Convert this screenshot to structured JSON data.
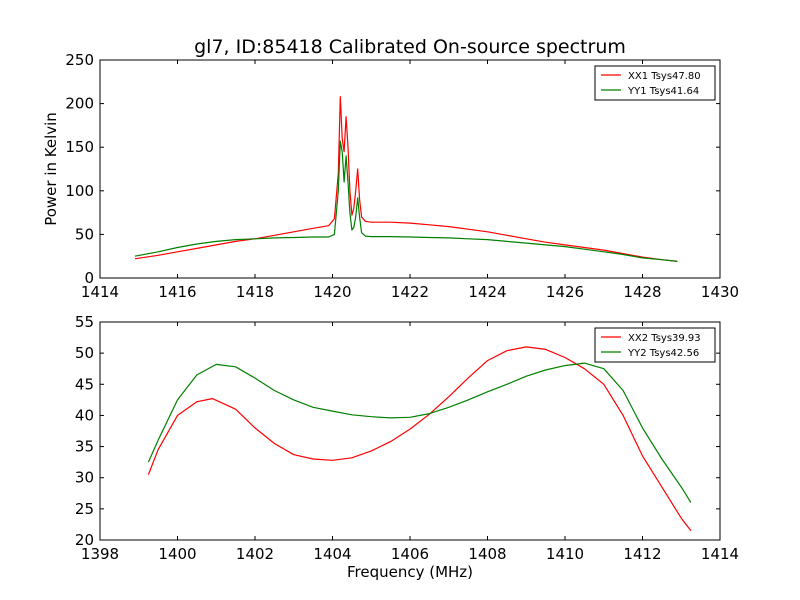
{
  "figure_title": "gl7, ID:85418 Calibrated On-source spectrum",
  "chart_data": [
    {
      "type": "line",
      "title": "",
      "xlabel": "",
      "ylabel": "Power in Kelvin",
      "xlim": [
        1414,
        1430
      ],
      "ylim": [
        0,
        250
      ],
      "xticks": [
        "1414",
        "1416",
        "1418",
        "1420",
        "1422",
        "1424",
        "1426",
        "1428",
        "1430"
      ],
      "yticks": [
        "0",
        "50",
        "100",
        "150",
        "200",
        "250"
      ],
      "legend_position": "top-right",
      "grid": false,
      "series": [
        {
          "name": "XX1 Tsys47.80",
          "color": "#ff0000",
          "x": [
            1414.9,
            1415.5,
            1416.0,
            1416.5,
            1417.0,
            1417.5,
            1418.0,
            1418.5,
            1419.0,
            1419.5,
            1419.9,
            1420.05,
            1420.15,
            1420.2,
            1420.25,
            1420.3,
            1420.35,
            1420.4,
            1420.45,
            1420.5,
            1420.55,
            1420.6,
            1420.65,
            1420.7,
            1420.75,
            1420.85,
            1421.0,
            1421.5,
            1422.0,
            1422.5,
            1423.0,
            1423.5,
            1424.0,
            1424.5,
            1425.0,
            1425.5,
            1426.0,
            1426.5,
            1427.0,
            1427.5,
            1428.0,
            1428.5,
            1428.9
          ],
          "y": [
            22,
            26,
            30,
            34,
            38,
            42,
            45,
            49,
            53,
            57,
            60,
            68,
            120,
            208,
            160,
            145,
            185,
            150,
            100,
            72,
            80,
            100,
            125,
            90,
            70,
            65,
            64,
            64,
            63,
            61,
            59,
            56,
            53,
            49,
            45,
            41,
            38,
            35,
            32,
            28,
            24,
            21,
            19
          ]
        },
        {
          "name": "YY1 Tsys41.64",
          "color": "#008000",
          "x": [
            1414.9,
            1415.5,
            1416.0,
            1416.5,
            1417.0,
            1417.5,
            1418.0,
            1418.5,
            1419.0,
            1419.5,
            1419.9,
            1420.05,
            1420.15,
            1420.2,
            1420.25,
            1420.3,
            1420.35,
            1420.4,
            1420.45,
            1420.5,
            1420.55,
            1420.6,
            1420.65,
            1420.7,
            1420.75,
            1420.85,
            1421.0,
            1421.5,
            1422.0,
            1422.5,
            1423.0,
            1423.5,
            1424.0,
            1424.5,
            1425.0,
            1425.5,
            1426.0,
            1426.5,
            1427.0,
            1427.5,
            1428.0,
            1428.5,
            1428.9
          ],
          "y": [
            25,
            30,
            35,
            39,
            42,
            44,
            45,
            46,
            46.5,
            47,
            47,
            50,
            100,
            157,
            145,
            110,
            140,
            110,
            75,
            55,
            58,
            70,
            92,
            70,
            52,
            48,
            47.5,
            47.5,
            47,
            46.5,
            46,
            45,
            44,
            42,
            40,
            38,
            36,
            33,
            30,
            27,
            23,
            21,
            19
          ]
        }
      ]
    },
    {
      "type": "line",
      "title": "",
      "xlabel": "Frequency (MHz)",
      "ylabel": "",
      "xlim": [
        1398,
        1414
      ],
      "ylim": [
        20,
        55
      ],
      "xticks": [
        "1398",
        "1400",
        "1402",
        "1404",
        "1406",
        "1408",
        "1410",
        "1412",
        "1414"
      ],
      "yticks": [
        "20",
        "25",
        "30",
        "35",
        "40",
        "45",
        "50",
        "55"
      ],
      "legend_position": "top-right",
      "grid": false,
      "series": [
        {
          "name": "XX2 Tsys39.93",
          "color": "#ff0000",
          "x": [
            1399.25,
            1399.5,
            1400.0,
            1400.5,
            1400.9,
            1401.5,
            1402.0,
            1402.5,
            1403.0,
            1403.5,
            1404.0,
            1404.5,
            1405.0,
            1405.5,
            1406.0,
            1406.5,
            1407.0,
            1407.5,
            1408.0,
            1408.5,
            1409.0,
            1409.5,
            1410.0,
            1410.5,
            1411.0,
            1411.5,
            1412.0,
            1412.5,
            1413.0,
            1413.25
          ],
          "y": [
            30.5,
            34.5,
            40,
            42.2,
            42.7,
            41,
            38,
            35.5,
            33.7,
            33,
            32.8,
            33.2,
            34.3,
            35.8,
            37.8,
            40.2,
            43,
            46,
            48.8,
            50.4,
            51,
            50.6,
            49.3,
            47.5,
            45,
            40,
            33.5,
            28.5,
            23.5,
            21.5
          ]
        },
        {
          "name": "YY2 Tsys42.56",
          "color": "#008000",
          "x": [
            1399.25,
            1399.5,
            1400.0,
            1400.5,
            1401.0,
            1401.5,
            1402.0,
            1402.5,
            1403.0,
            1403.5,
            1404.0,
            1404.5,
            1405.0,
            1405.5,
            1406.0,
            1406.5,
            1407.0,
            1407.5,
            1408.0,
            1408.5,
            1409.0,
            1409.5,
            1410.0,
            1410.5,
            1411.0,
            1411.5,
            1412.0,
            1412.5,
            1413.0,
            1413.25
          ],
          "y": [
            32.5,
            36,
            42.5,
            46.5,
            48.2,
            47.8,
            46,
            44,
            42.5,
            41.3,
            40.7,
            40.1,
            39.8,
            39.6,
            39.7,
            40.3,
            41.3,
            42.5,
            43.8,
            45,
            46.3,
            47.3,
            48,
            48.4,
            47.5,
            44,
            38,
            33,
            28.5,
            26
          ]
        }
      ]
    }
  ]
}
